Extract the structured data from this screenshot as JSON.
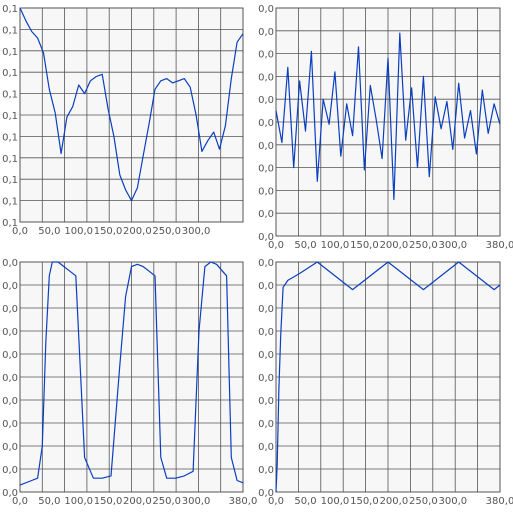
{
  "colors": {
    "plot_bg": "#f7f7f7",
    "grid": "#555555",
    "series": "#0a3fbf",
    "tick": "#555555"
  },
  "chart_data": [
    {
      "type": "line",
      "title": "",
      "xlabel": "",
      "ylabel": "",
      "xlim": [
        0,
        380
      ],
      "ylim": [
        0,
        10
      ],
      "grid": true,
      "x_ticks": [
        "0,0",
        "50,0",
        "100,0",
        "150,0",
        "200,0",
        "250,0",
        "300,0"
      ],
      "y_ticks": [
        "0,1",
        "0,1",
        "0,1",
        "0,1",
        "0,1",
        "0,1",
        "0,1",
        "0,1",
        "0,1",
        "0,1",
        "0,1"
      ],
      "series": [
        {
          "x": [
            0,
            10,
            20,
            30,
            40,
            50,
            60,
            70,
            80,
            90,
            100,
            110,
            120,
            130,
            140,
            150,
            160,
            170,
            180,
            190,
            200,
            210,
            220,
            230,
            240,
            250,
            260,
            270,
            280,
            290,
            300,
            310,
            320,
            330,
            340,
            350,
            360,
            370,
            380
          ],
          "y": [
            10,
            9.4,
            8.9,
            8.6,
            7.9,
            6.2,
            5.1,
            3.2,
            4.9,
            5.4,
            6.4,
            6.0,
            6.6,
            6.8,
            6.9,
            5.3,
            4.0,
            2.2,
            1.5,
            1.0,
            1.6,
            3.1,
            4.6,
            6.2,
            6.6,
            6.7,
            6.5,
            6.6,
            6.7,
            6.3,
            5.0,
            3.3,
            3.8,
            4.2,
            3.4,
            4.5,
            6.7,
            8.4,
            8.8
          ]
        }
      ]
    },
    {
      "type": "line",
      "title": "",
      "xlabel": "",
      "ylabel": "",
      "xlim": [
        0,
        380
      ],
      "ylim": [
        0,
        10
      ],
      "grid": true,
      "x_ticks": [
        "0,0",
        "50,0",
        "100,0",
        "150,0",
        "200,0",
        "250,0",
        "300,0",
        "380,0"
      ],
      "y_ticks": [
        "0,0",
        "0,0",
        "0,0",
        "0,0",
        "0,0",
        "0,0",
        "0,0",
        "0,0",
        "0,0",
        "0,0",
        "0,0"
      ],
      "series": [
        {
          "x": [
            0,
            10,
            20,
            30,
            40,
            50,
            60,
            70,
            80,
            90,
            100,
            110,
            120,
            130,
            140,
            150,
            160,
            170,
            180,
            190,
            200,
            210,
            220,
            230,
            240,
            250,
            260,
            270,
            280,
            290,
            300,
            310,
            320,
            330,
            340,
            350,
            360,
            370,
            380
          ],
          "y": [
            5.5,
            4.1,
            7.4,
            3.0,
            6.8,
            4.6,
            8.1,
            2.4,
            6.0,
            4.9,
            7.2,
            3.5,
            5.8,
            4.4,
            8.3,
            2.9,
            6.6,
            5.1,
            3.4,
            7.8,
            1.6,
            8.9,
            4.2,
            6.5,
            3.0,
            7.0,
            2.6,
            6.1,
            4.7,
            5.9,
            3.8,
            6.7,
            4.3,
            5.5,
            3.6,
            6.4,
            4.5,
            5.8,
            4.9
          ]
        }
      ]
    },
    {
      "type": "line",
      "title": "",
      "xlabel": "",
      "ylabel": "",
      "xlim": [
        0,
        380
      ],
      "ylim": [
        0,
        10
      ],
      "grid": true,
      "x_ticks": [
        "0,0",
        "50,0",
        "100,0",
        "150,0",
        "200,0",
        "250,0",
        "300,0",
        "380,0"
      ],
      "y_ticks": [
        "0,0",
        "0,0",
        "0,0",
        "0,0",
        "0,0",
        "0,0",
        "0,0",
        "0,0",
        "0,0",
        "0,0",
        "0,0"
      ],
      "series": [
        {
          "x": [
            0,
            20,
            30,
            38,
            44,
            50,
            55,
            65,
            75,
            85,
            95,
            110,
            125,
            140,
            155,
            170,
            180,
            190,
            200,
            210,
            220,
            230,
            240,
            250,
            265,
            280,
            295,
            305,
            315,
            325,
            335,
            345,
            352,
            360,
            370,
            380
          ],
          "y": [
            0.3,
            0.5,
            0.6,
            2.0,
            6.5,
            9.4,
            10,
            10,
            9.8,
            9.6,
            9.4,
            1.5,
            0.6,
            0.6,
            0.7,
            5.5,
            8.5,
            9.8,
            9.9,
            9.8,
            9.6,
            9.4,
            1.5,
            0.6,
            0.6,
            0.7,
            0.9,
            7.0,
            9.8,
            10,
            9.9,
            9.6,
            9.4,
            1.5,
            0.5,
            0.4
          ]
        }
      ]
    },
    {
      "type": "line",
      "title": "",
      "xlabel": "",
      "ylabel": "",
      "xlim": [
        0,
        380
      ],
      "ylim": [
        0,
        10
      ],
      "grid": true,
      "x_ticks": [
        "0,0",
        "50,0",
        "100,0",
        "150,0",
        "200,0",
        "250,0",
        "300,0",
        "380,0"
      ],
      "y_ticks": [
        "0,0",
        "0,0",
        "0,0",
        "0,0",
        "0,0",
        "0,0",
        "0,0",
        "0,0",
        "0,0",
        "0,0",
        "0,0"
      ],
      "series": [
        {
          "x": [
            0,
            2,
            5,
            8,
            12,
            20,
            40,
            70,
            130,
            190,
            250,
            310,
            370,
            380
          ],
          "y": [
            0.0,
            1.2,
            4.5,
            6.8,
            8.9,
            9.2,
            9.5,
            10,
            8.8,
            10,
            8.8,
            10,
            8.8,
            9.0
          ]
        }
      ]
    }
  ]
}
